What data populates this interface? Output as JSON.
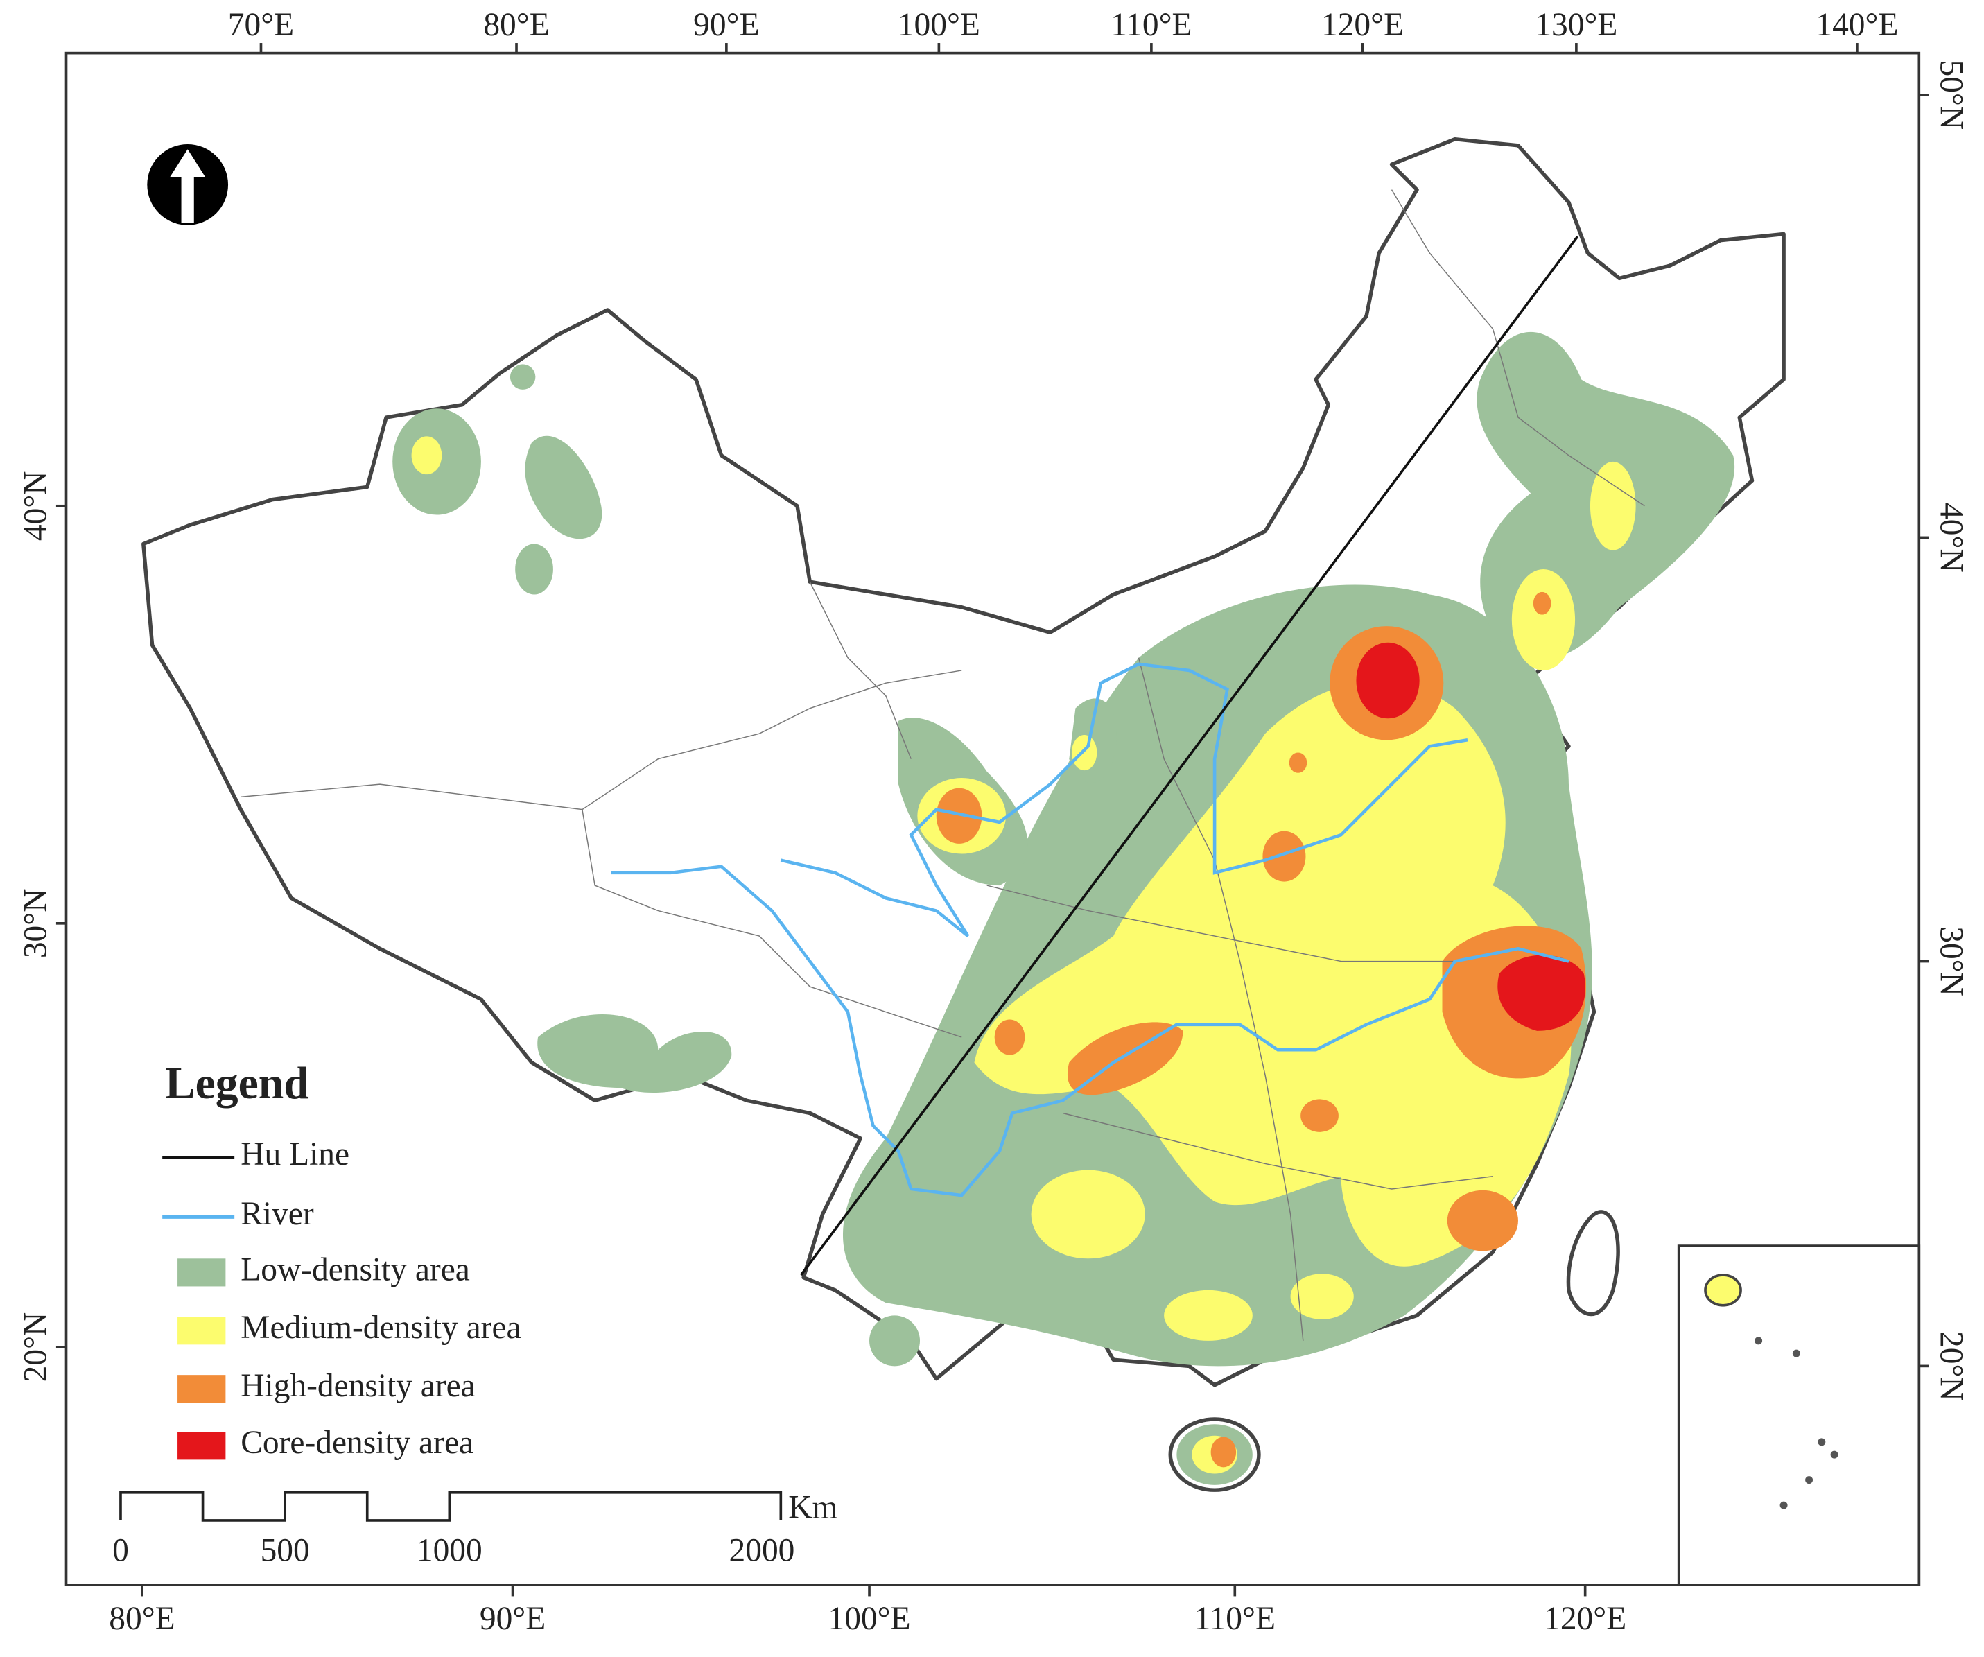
{
  "map": {
    "top_axis": [
      "70°E",
      "80°E",
      "90°E",
      "100°E",
      "110°E",
      "120°E",
      "130°E",
      "140°E"
    ],
    "bottom_axis": [
      "80°E",
      "90°E",
      "100°E",
      "110°E",
      "120°E"
    ],
    "left_axis": [
      "40°N",
      "30°N",
      "20°N"
    ],
    "right_axis": [
      "50°N",
      "40°N",
      "30°N",
      "20°N"
    ],
    "legend": {
      "title": "Legend",
      "items": [
        "Hu Line",
        "River",
        "Low-density area",
        "Medium-density area",
        "High-density area",
        "Core-density area"
      ]
    },
    "scale_bar": {
      "labels": [
        "0",
        "500",
        "1000",
        "2000"
      ],
      "unit": "Km"
    }
  }
}
